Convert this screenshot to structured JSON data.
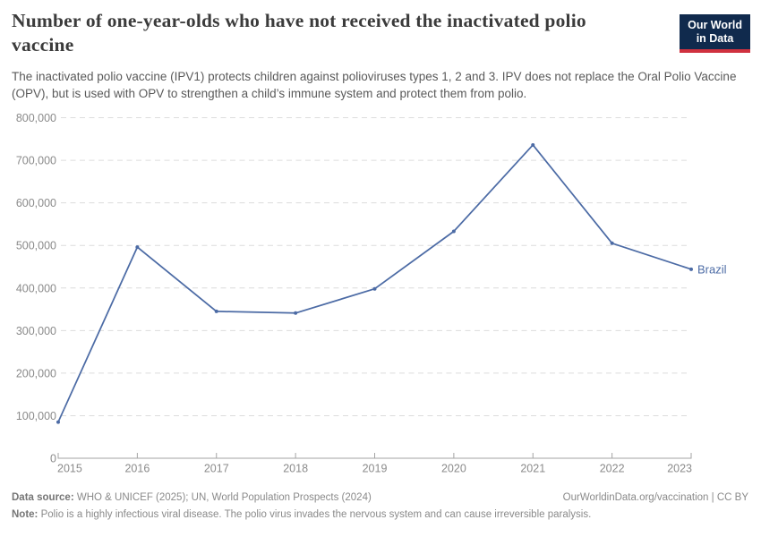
{
  "header": {
    "title": "Number of one-year-olds who have not received the inactivated polio vaccine",
    "subtitle": "The inactivated polio vaccine (IPV1) protects children against polioviruses types 1, 2 and 3. IPV does not replace the Oral Polio Vaccine (OPV), but is used with OPV to strengthen a child’s immune system and protect them from polio.",
    "logo": {
      "line1": "Our World",
      "line2": "in Data",
      "bg_color": "#102a4d",
      "bar_color": "#d0313f"
    }
  },
  "chart_data": {
    "type": "line",
    "title": "Number of one-year-olds who have not received the inactivated polio vaccine",
    "x": [
      2015,
      2016,
      2017,
      2018,
      2019,
      2020,
      2021,
      2022,
      2023
    ],
    "series": [
      {
        "name": "Brazil",
        "color": "#4c6ba5",
        "values": [
          85000,
          496000,
          345000,
          341000,
          398000,
          533000,
          736000,
          505000,
          444000
        ]
      }
    ],
    "xlabel": "",
    "ylabel": "",
    "ylim": [
      0,
      800000
    ],
    "ytick_step": 100000,
    "ytick_labels": [
      "0",
      "100,000",
      "200,000",
      "300,000",
      "400,000",
      "500,000",
      "600,000",
      "700,000",
      "800,000"
    ],
    "grid": "horizontal-dashed",
    "legend_position": "end-of-line-label"
  },
  "chart_style": {
    "grid_color": "#dcdcdc",
    "axis_color": "#a3a3a3",
    "axis_label_color": "#8b8b8b",
    "title_color": "#3b3b3b",
    "subtitle_color": "#5a5a5a",
    "footer_color": "#8a8a8a"
  },
  "footer": {
    "data_source_label": "Data source:",
    "data_source_value": "WHO & UNICEF (2025); UN, World Population Prospects (2024)",
    "link": "OurWorldinData.org/vaccination",
    "separator": "|",
    "license": "CC BY",
    "note_label": "Note:",
    "note_value": "Polio is a highly infectious viral disease. The polio virus invades the nervous system and can cause irreversible paralysis."
  }
}
